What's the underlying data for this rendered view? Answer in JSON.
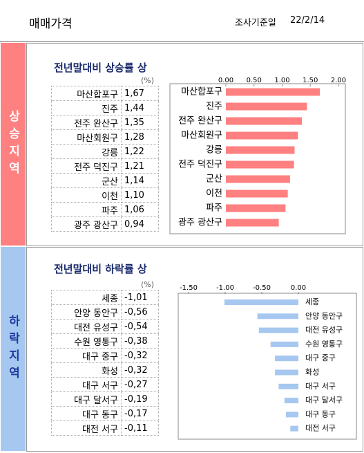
{
  "header": {
    "title": "매매가격",
    "date_label": "조사기준일",
    "date": "22/2/14"
  },
  "sections": [
    {
      "side_label": "상승지역",
      "title": "전년말대비 상승률 상",
      "unit": "(%)",
      "table": {
        "rows": [
          [
            "마산합포구",
            "1,67"
          ],
          [
            "진주",
            "1,44"
          ],
          [
            "전주 완산구",
            "1,35"
          ],
          [
            "마산회원구",
            "1,28"
          ],
          [
            "강릉",
            "1,22"
          ],
          [
            "전주 덕진구",
            "1,21"
          ],
          [
            "군산",
            "1,14"
          ],
          [
            "이천",
            "1,10"
          ],
          [
            "파주",
            "1,06"
          ],
          [
            "광주 광산구",
            "0,94"
          ]
        ]
      }
    },
    {
      "side_label": "하락지역",
      "title": "전년말대비 하락률 상",
      "unit": "(%)",
      "table": {
        "rows": [
          [
            "세종",
            "-1,01"
          ],
          [
            "안양 동안구",
            "-0,56"
          ],
          [
            "대전 유성구",
            "-0,54"
          ],
          [
            "수원 영통구",
            "-0,38"
          ],
          [
            "대구 중구",
            "-0,32"
          ],
          [
            "화성",
            "-0,32"
          ],
          [
            "대구 서구",
            "-0,27"
          ],
          [
            "대구 달서구",
            "-0,19"
          ],
          [
            "대구 동구",
            "-0,17"
          ],
          [
            "대전 서구",
            "-0,11"
          ]
        ]
      }
    }
  ],
  "chart_data": [
    {
      "type": "bar",
      "orientation": "horizontal",
      "label_side": "left",
      "color": "#ff8080",
      "categories": [
        "마산합포구",
        "진주",
        "전주 완산구",
        "마산회원구",
        "강릉",
        "전주 덕진구",
        "군산",
        "이천",
        "파주",
        "광주 광산구"
      ],
      "values": [
        1.67,
        1.44,
        1.35,
        1.28,
        1.22,
        1.21,
        1.14,
        1.1,
        1.06,
        0.94
      ],
      "xlim": [
        0,
        2
      ],
      "xticks": [
        {
          "value": 0,
          "label": "0.00"
        },
        {
          "value": 0.5,
          "label": "0.50"
        },
        {
          "value": 1,
          "label": "1.00"
        },
        {
          "value": 1.5,
          "label": "1.50"
        },
        {
          "value": 2,
          "label": "2.00"
        }
      ]
    },
    {
      "type": "bar",
      "orientation": "horizontal",
      "label_side": "right",
      "color": "#a6c8f0",
      "categories": [
        "세종",
        "안양 동안구",
        "대전 유성구",
        "수원 영통구",
        "대구 중구",
        "화성",
        "대구 서구",
        "대구 달서구",
        "대구 동구",
        "대전 서구"
      ],
      "values": [
        -1.01,
        -0.56,
        -0.54,
        -0.38,
        -0.32,
        -0.32,
        -0.27,
        -0.19,
        -0.17,
        -0.11
      ],
      "xlim": [
        -1.5,
        0
      ],
      "xticks": [
        {
          "value": -1.5,
          "label": "-1.50"
        },
        {
          "value": -1,
          "label": "-1.00"
        },
        {
          "value": -0.5,
          "label": "-0.50"
        },
        {
          "value": 0,
          "label": "0.00"
        }
      ]
    }
  ]
}
